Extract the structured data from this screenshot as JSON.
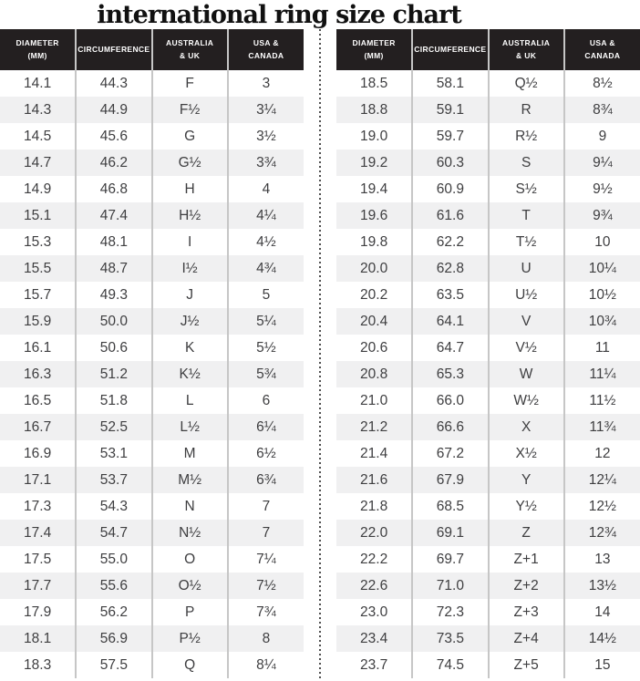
{
  "title": "international ring size chart",
  "colors": {
    "header_bg": "#231f20",
    "header_text": "#ffffff",
    "row_alt": "#f0f0f1",
    "body_text": "#3e3e40",
    "divider": "#c6c6c6",
    "dotted": "#4d4d4d",
    "title_color": "#111111"
  },
  "chart_data": {
    "type": "table",
    "title": "international ring size chart",
    "columns": [
      "DIAMETER (mm)",
      "CIRCUMFERENCE",
      "AUSTRALIA & UK",
      "USA & CANADA"
    ],
    "column_header_lines": [
      [
        "DIAMETER",
        "(mm)"
      ],
      [
        "CIRCUMFERENCE"
      ],
      [
        "AUSTRALIA",
        "& UK"
      ],
      [
        "USA &",
        "CANADA"
      ]
    ],
    "tables": [
      {
        "name": "left",
        "rows": [
          [
            "14.1",
            "44.3",
            "F",
            "3"
          ],
          [
            "14.3",
            "44.9",
            "F½",
            "3¼"
          ],
          [
            "14.5",
            "45.6",
            "G",
            "3½"
          ],
          [
            "14.7",
            "46.2",
            "G½",
            "3¾"
          ],
          [
            "14.9",
            "46.8",
            "H",
            "4"
          ],
          [
            "15.1",
            "47.4",
            "H½",
            "4¼"
          ],
          [
            "15.3",
            "48.1",
            "I",
            "4½"
          ],
          [
            "15.5",
            "48.7",
            "I½",
            "4¾"
          ],
          [
            "15.7",
            "49.3",
            "J",
            "5"
          ],
          [
            "15.9",
            "50.0",
            "J½",
            "5¼"
          ],
          [
            "16.1",
            "50.6",
            "K",
            "5½"
          ],
          [
            "16.3",
            "51.2",
            "K½",
            "5¾"
          ],
          [
            "16.5",
            "51.8",
            "L",
            "6"
          ],
          [
            "16.7",
            "52.5",
            "L½",
            "6¼"
          ],
          [
            "16.9",
            "53.1",
            "M",
            "6½"
          ],
          [
            "17.1",
            "53.7",
            "M½",
            "6¾"
          ],
          [
            "17.3",
            "54.3",
            "N",
            "7"
          ],
          [
            "17.4",
            "54.7",
            "N½",
            "7"
          ],
          [
            "17.5",
            "55.0",
            "O",
            "7¼"
          ],
          [
            "17.7",
            "55.6",
            "O½",
            "7½"
          ],
          [
            "17.9",
            "56.2",
            "P",
            "7¾"
          ],
          [
            "18.1",
            "56.9",
            "P½",
            "8"
          ],
          [
            "18.3",
            "57.5",
            "Q",
            "8¼"
          ]
        ]
      },
      {
        "name": "right",
        "rows": [
          [
            "18.5",
            "58.1",
            "Q½",
            "8½"
          ],
          [
            "18.8",
            "59.1",
            "R",
            "8¾"
          ],
          [
            "19.0",
            "59.7",
            "R½",
            "9"
          ],
          [
            "19.2",
            "60.3",
            "S",
            "9¼"
          ],
          [
            "19.4",
            "60.9",
            "S½",
            "9½"
          ],
          [
            "19.6",
            "61.6",
            "T",
            "9¾"
          ],
          [
            "19.8",
            "62.2",
            "T½",
            "10"
          ],
          [
            "20.0",
            "62.8",
            "U",
            "10¼"
          ],
          [
            "20.2",
            "63.5",
            "U½",
            "10½"
          ],
          [
            "20.4",
            "64.1",
            "V",
            "10¾"
          ],
          [
            "20.6",
            "64.7",
            "V½",
            "11"
          ],
          [
            "20.8",
            "65.3",
            "W",
            "11¼"
          ],
          [
            "21.0",
            "66.0",
            "W½",
            "11½"
          ],
          [
            "21.2",
            "66.6",
            "X",
            "11¾"
          ],
          [
            "21.4",
            "67.2",
            "X½",
            "12"
          ],
          [
            "21.6",
            "67.9",
            "Y",
            "12¼"
          ],
          [
            "21.8",
            "68.5",
            "Y½",
            "12½"
          ],
          [
            "22.0",
            "69.1",
            "Z",
            "12¾"
          ],
          [
            "22.2",
            "69.7",
            "Z+1",
            "13"
          ],
          [
            "22.6",
            "71.0",
            "Z+2",
            "13½"
          ],
          [
            "23.0",
            "72.3",
            "Z+3",
            "14"
          ],
          [
            "23.4",
            "73.5",
            "Z+4",
            "14½"
          ],
          [
            "23.7",
            "74.5",
            "Z+5",
            "15"
          ]
        ]
      }
    ]
  }
}
